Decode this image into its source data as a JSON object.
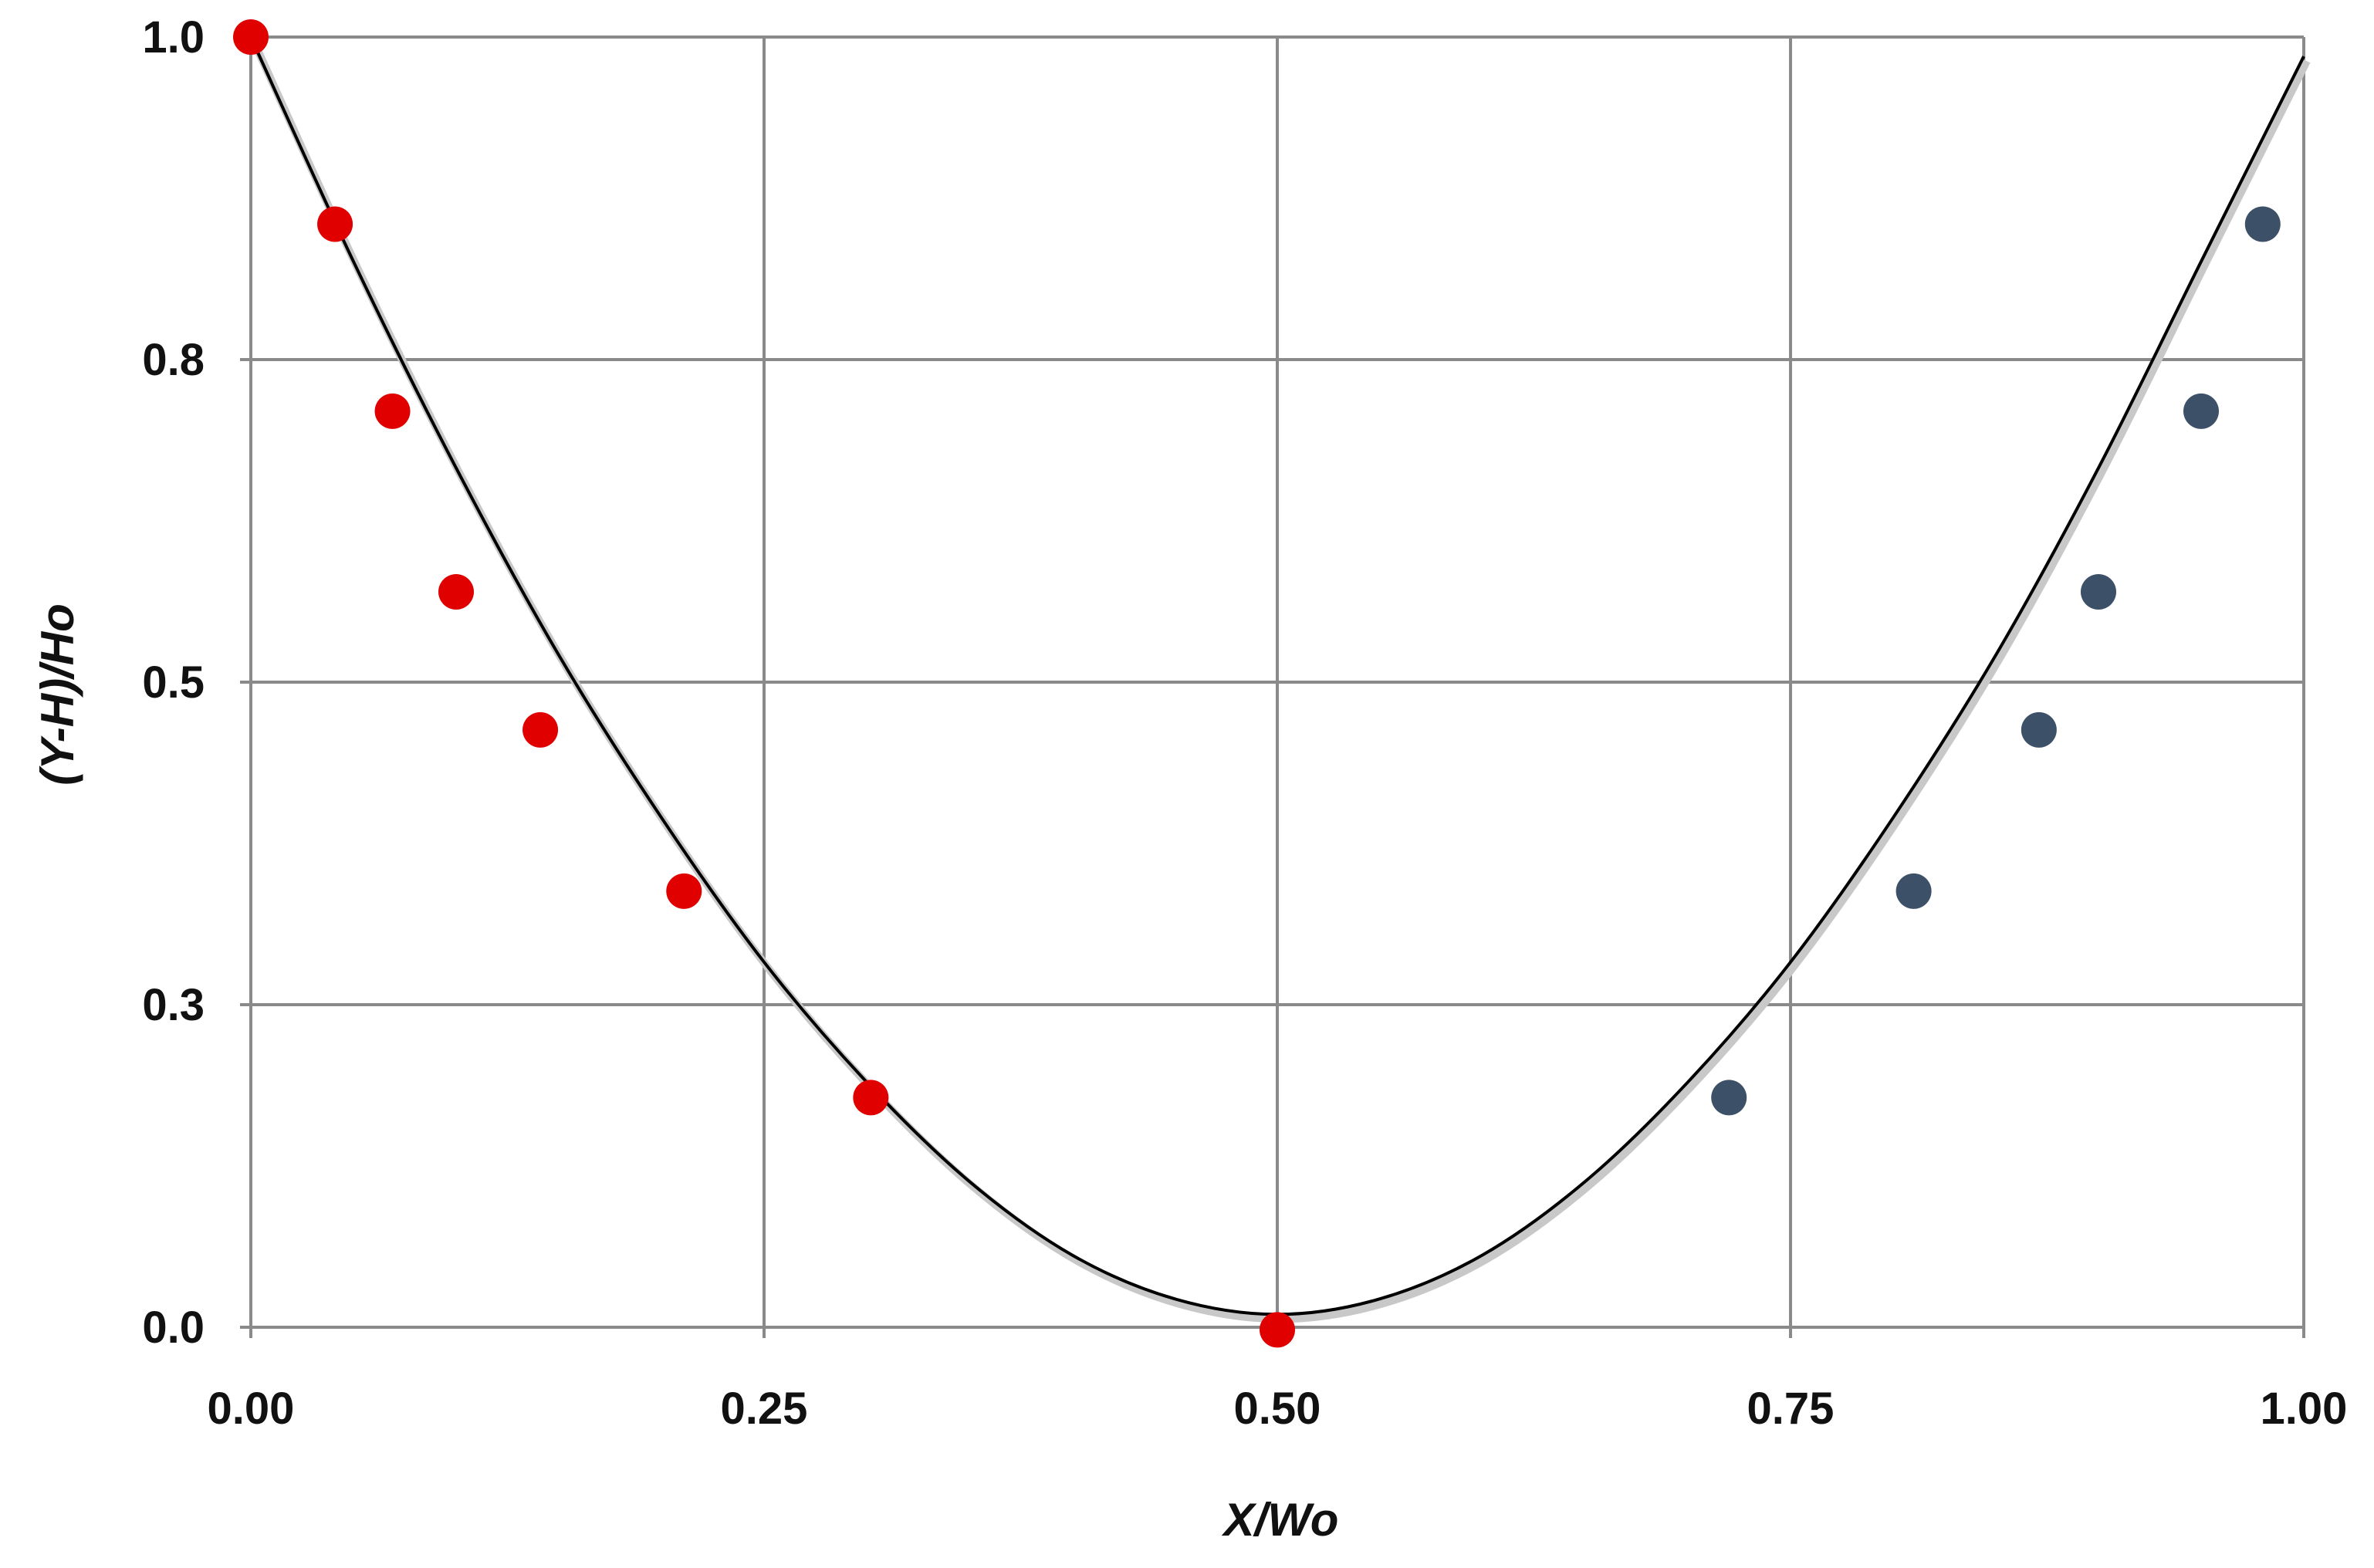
{
  "chart_data": {
    "type": "scatter",
    "title": "",
    "xlabel": "X/Wo",
    "ylabel": "(Y-H)/Ho",
    "xlim": [
      0,
      1
    ],
    "ylim": [
      0,
      1
    ],
    "grid": true,
    "x_ticks": [
      0,
      0.25,
      0.5,
      0.75,
      1
    ],
    "x_tick_labels": [
      "0.00",
      "0.25",
      "0.50",
      "0.75",
      "1.00"
    ],
    "y_ticks": [
      0,
      0.25,
      0.5,
      0.75,
      1
    ],
    "y_tick_labels": [
      "0.0",
      "0.3",
      "0.5",
      "0.8",
      "1.0"
    ],
    "series": [
      {
        "color": "#e00000",
        "marker": "circle",
        "x": [
          0.0,
          0.041,
          0.069,
          0.1,
          0.141,
          0.211,
          0.302,
          0.5
        ],
        "y": [
          1.0,
          0.855,
          0.71,
          0.57,
          0.463,
          0.338,
          0.178,
          -0.002
        ]
      },
      {
        "color": "#3c5068",
        "marker": "circle",
        "x": [
          0.72,
          0.81,
          0.871,
          0.9,
          0.95,
          0.98
        ],
        "y": [
          0.178,
          0.338,
          0.463,
          0.57,
          0.71,
          0.855
        ]
      },
      {
        "color": "#000000",
        "type": "line",
        "x": [
          0.0,
          0.05,
          0.1,
          0.15,
          0.2,
          0.25,
          0.3,
          0.35,
          0.4,
          0.45,
          0.5,
          0.55,
          0.6,
          0.65,
          0.7,
          0.75,
          0.8,
          0.85,
          0.9,
          0.95,
          1.0
        ],
        "y": [
          1.0,
          0.826,
          0.666,
          0.521,
          0.395,
          0.283,
          0.19,
          0.113,
          0.056,
          0.022,
          0.01,
          0.022,
          0.056,
          0.113,
          0.19,
          0.283,
          0.395,
          0.521,
          0.666,
          0.826,
          0.985
        ]
      }
    ]
  }
}
